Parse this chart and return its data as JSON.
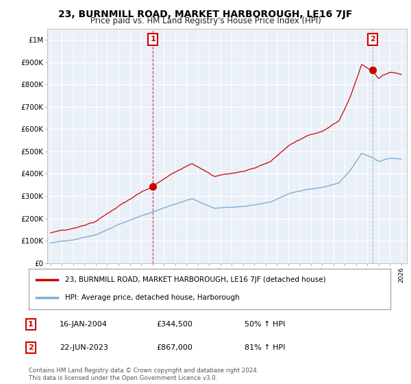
{
  "title": "23, BURNMILL ROAD, MARKET HARBOROUGH, LE16 7JF",
  "subtitle": "Price paid vs. HM Land Registry's House Price Index (HPI)",
  "title_fontsize": 10,
  "subtitle_fontsize": 8.5,
  "ylabel_ticks": [
    "£0",
    "£100K",
    "£200K",
    "£300K",
    "£400K",
    "£500K",
    "£600K",
    "£700K",
    "£800K",
    "£900K",
    "£1M"
  ],
  "ytick_values": [
    0,
    100000,
    200000,
    300000,
    400000,
    500000,
    600000,
    700000,
    800000,
    900000,
    1000000
  ],
  "ylim": [
    0,
    1050000
  ],
  "xlim_start": 1994.7,
  "xlim_end": 2026.5,
  "sale1_x": 2004.04,
  "sale1_y": 344500,
  "sale2_x": 2023.47,
  "sale2_y": 867000,
  "sale1_label": "1",
  "sale2_label": "2",
  "annotation1_date": "16-JAN-2004",
  "annotation1_price": "£344,500",
  "annotation1_hpi": "50% ↑ HPI",
  "annotation2_date": "22-JUN-2023",
  "annotation2_price": "£867,000",
  "annotation2_hpi": "81% ↑ HPI",
  "legend_label1": "23, BURNMILL ROAD, MARKET HARBOROUGH, LE16 7JF (detached house)",
  "legend_label2": "HPI: Average price, detached house, Harborough",
  "line_color_red": "#cc0000",
  "line_color_blue": "#7bafd4",
  "vline1_color": "#cc0000",
  "vline2_color": "#aaaaaa",
  "marker_color": "#cc0000",
  "footnote": "Contains HM Land Registry data © Crown copyright and database right 2024.\nThis data is licensed under the Open Government Licence v3.0.",
  "background_color": "#ffffff",
  "plot_bg_color": "#eaf0f8",
  "grid_color": "#ffffff",
  "hpi_start_year": 1995,
  "hpi_end_year": 2026
}
